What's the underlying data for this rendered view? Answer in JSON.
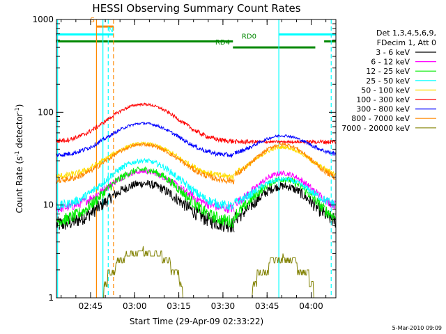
{
  "chart_data": {
    "type": "line",
    "title": "HESSI Observing Summary Count Rates",
    "xlabel": "Start Time (29-Apr-09 02:33:22)",
    "ylabel": "Count Rate (s",
    "ylabel_sup": "-1",
    "ylabel_tail": " detector",
    "ylabel_tail_sup": "-1",
    "ylabel_close": ")",
    "yscale": "log",
    "ylim": [
      1,
      1000
    ],
    "xlim_minutes": [
      0,
      95
    ],
    "x_ticks": [
      {
        "label": "02:45",
        "minute": 11.6
      },
      {
        "label": "03:00",
        "minute": 26.6
      },
      {
        "label": "03:15",
        "minute": 41.6
      },
      {
        "label": "03:30",
        "minute": 56.6
      },
      {
        "label": "03:45",
        "minute": 71.6
      },
      {
        "label": "04:00",
        "minute": 86.6
      }
    ],
    "y_ticks": [
      {
        "label": "1",
        "value": 1
      },
      {
        "label": "10",
        "value": 10
      },
      {
        "label": "100",
        "value": 100
      },
      {
        "label": "1000",
        "value": 1000
      }
    ],
    "legend_title_1": "Det 1,3,4,5,6,9,",
    "legend_title_2": "FDecim 1, Att 0",
    "legend_position": "right",
    "series": [
      {
        "name": "3 - 6 keV",
        "color": "#000000",
        "base": 6.0,
        "peak1": 17,
        "peak2": 16,
        "noise": 0.1
      },
      {
        "name": "6 - 12 keV",
        "color": "#ff00ff",
        "base": 9.0,
        "peak1": 23,
        "peak2": 22,
        "noise": 0.06
      },
      {
        "name": "12 - 25 keV",
        "color": "#00ee00",
        "base": 6.5,
        "peak1": 24,
        "peak2": 19,
        "noise": 0.08
      },
      {
        "name": "25 - 50 keV",
        "color": "#00ffff",
        "base": 9.5,
        "peak1": 30,
        "peak2": 19,
        "noise": 0.06
      },
      {
        "name": "50 - 100 keV",
        "color": "#ffdd00",
        "base": 20.0,
        "peak1": 46,
        "peak2": 42,
        "noise": 0.04
      },
      {
        "name": "100 - 300 keV",
        "color": "#ff0000",
        "base": 48.0,
        "peak1": 122,
        "peak2": 48,
        "noise": 0.03
      },
      {
        "name": "300 - 800 keV",
        "color": "#0000ff",
        "base": 34.0,
        "peak1": 76,
        "peak2": 56,
        "noise": 0.03
      },
      {
        "name": "800 - 7000 keV",
        "color": "#ff8800",
        "base": 18.0,
        "peak1": 45,
        "peak2": 45,
        "noise": 0.04
      },
      {
        "name": "7000 - 20000 keV",
        "color": "#808000",
        "base": 1.0,
        "peak1": 3.6,
        "peak2": 3.0,
        "noise": 0.0
      }
    ],
    "flag_bars": [
      {
        "label": "S",
        "color": "#ff8800",
        "start": 13.6,
        "end": 19.4,
        "value": 840
      },
      {
        "label": "N",
        "color": "#00ffff",
        "start": 0.0,
        "end": 19.4,
        "value": 690
      },
      {
        "label": "N",
        "color": "#00ffff",
        "start": 75.6,
        "end": 95.0,
        "value": 690
      },
      {
        "label": "RD0",
        "color": "#008800",
        "start": 0.0,
        "end": 60.0,
        "value": 580
      },
      {
        "label": "RD4",
        "color": "#008800",
        "start": 60.0,
        "end": 88.0,
        "value": 500
      },
      {
        "label": "",
        "color": "#008800",
        "start": 91.0,
        "end": 95.0,
        "value": 580
      }
    ],
    "flag_labels": [
      {
        "text": "S",
        "color": "#ff8800",
        "minute": 11.5,
        "value": 900
      },
      {
        "text": "N",
        "color": "#00ffff",
        "minute": 17.6,
        "value": 710
      },
      {
        "text": "RD0",
        "color": "#008800",
        "minute": 63.0,
        "value": 600
      },
      {
        "text": "RD4",
        "color": "#008800",
        "minute": 54.0,
        "value": 520
      }
    ],
    "vertical_lines": [
      {
        "minute": 13.6,
        "color": "#ff8800",
        "style": "solid"
      },
      {
        "minute": 19.4,
        "color": "#ff8800",
        "style": "dashed"
      },
      {
        "minute": 15.8,
        "color": "#00ffff",
        "style": "solid"
      },
      {
        "minute": 17.6,
        "color": "#00ffff",
        "style": "dashed"
      },
      {
        "minute": 75.6,
        "color": "#00ffff",
        "style": "solid"
      },
      {
        "minute": 93.4,
        "color": "#00ffff",
        "style": "dashed"
      },
      {
        "minute": 0.4,
        "color": "#00ffff",
        "style": "solid"
      }
    ],
    "segments": [
      {
        "start": 0.0,
        "end": 60.5,
        "center": 29.5,
        "width": 14
      },
      {
        "start": 60.5,
        "end": 95.0,
        "center": 77.0,
        "width": 11
      }
    ]
  },
  "timestamp": "5-Mar-2010 09:09"
}
